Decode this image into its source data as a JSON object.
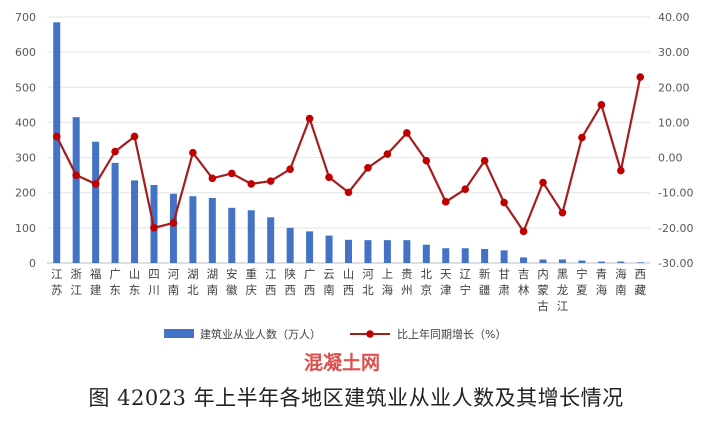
{
  "chart_data": {
    "type": "bar+line",
    "title": "图 42023 年上半年各地区建筑业从业人数及其增长情况",
    "watermark": "混凝土网",
    "categories": [
      "江苏",
      "浙江",
      "福建",
      "广东",
      "山东",
      "四川",
      "河南",
      "湖北",
      "湖南",
      "安徽",
      "重庆",
      "江西",
      "陕西",
      "广西",
      "云南",
      "山西",
      "河北",
      "上海",
      "贵州",
      "北京",
      "天津",
      "辽宁",
      "新疆",
      "甘肃",
      "吉林",
      "内蒙古",
      "黑龙江",
      "宁夏",
      "青海",
      "海南",
      "西藏"
    ],
    "series": [
      {
        "name": "建筑业从业人数（万人）",
        "type": "bar",
        "axis": "left",
        "color": "#4472c4",
        "values": [
          685,
          415,
          345,
          285,
          235,
          222,
          197,
          190,
          185,
          157,
          150,
          130,
          100,
          90,
          78,
          66,
          65,
          65,
          65,
          52,
          42,
          42,
          40,
          36,
          16,
          10,
          10,
          7,
          4,
          4,
          2
        ]
      },
      {
        "name": "比上年同期增长（%）",
        "type": "line",
        "axis": "right",
        "color": "#c00000",
        "values": [
          6.0,
          -5.0,
          -7.5,
          1.7,
          6.0,
          -20.0,
          -18.6,
          1.4,
          -5.9,
          -4.5,
          -7.5,
          -6.7,
          -3.3,
          11.1,
          -5.6,
          -9.9,
          -2.9,
          1.0,
          7.0,
          -0.9,
          -12.6,
          -9.0,
          -0.9,
          -12.8,
          -21.0,
          -7.1,
          -15.7,
          5.7,
          15.0,
          -3.7,
          22.9
        ]
      }
    ],
    "left_axis": {
      "ylim": [
        0,
        700
      ],
      "ticks": [
        "0",
        "100",
        "200",
        "300",
        "400",
        "500",
        "600",
        "700"
      ]
    },
    "right_axis": {
      "ylim": [
        -30,
        40
      ],
      "ticks": [
        "-30.00",
        "-20.00",
        "-10.00",
        "0.00",
        "10.00",
        "20.00",
        "30.00",
        "40.00"
      ]
    },
    "grid": true,
    "legend_position": "bottom"
  }
}
